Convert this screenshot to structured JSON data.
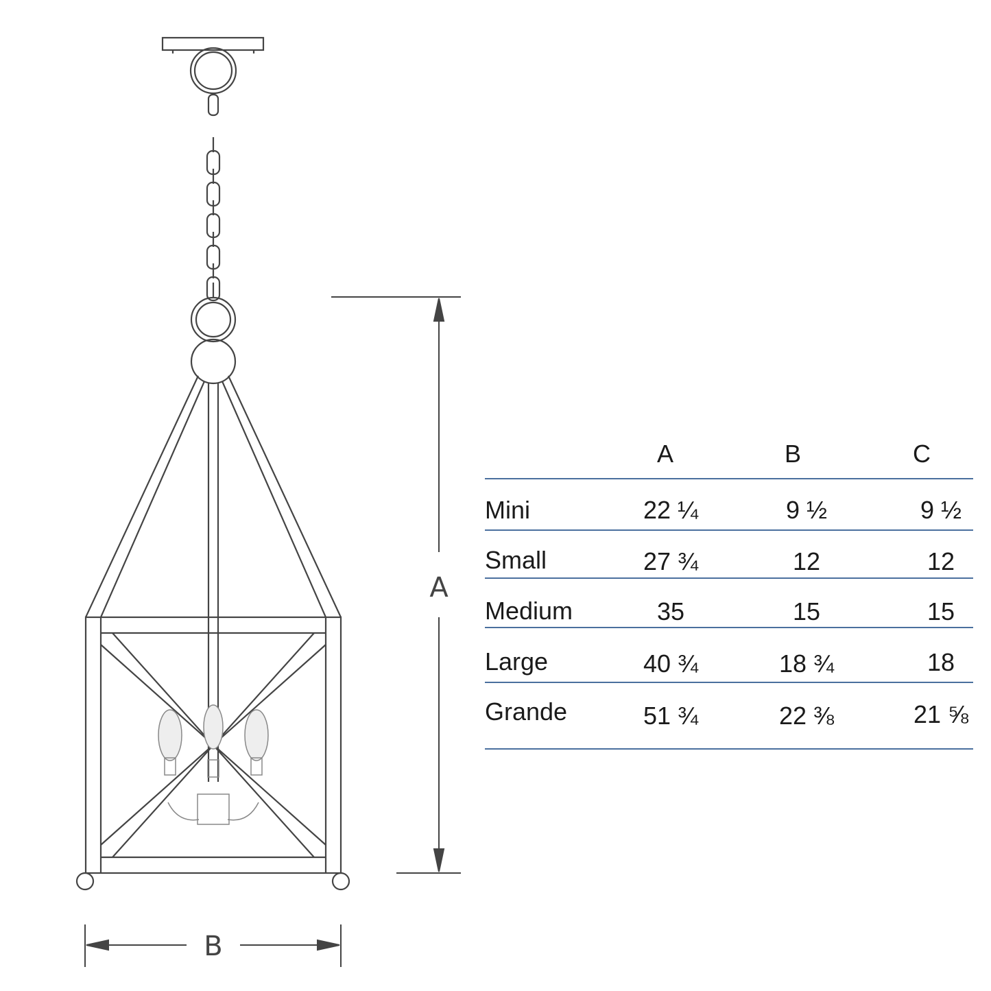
{
  "dimension_labels": {
    "height": "A",
    "width": "B"
  },
  "table": {
    "columns": [
      "A",
      "B",
      "C"
    ],
    "rows": [
      {
        "size": "Mini",
        "A": "22 ¼",
        "B": "9 ½",
        "C": "9 ½"
      },
      {
        "size": "Small",
        "A": "27 ¾",
        "B": "12",
        "C": "12"
      },
      {
        "size": "Medium",
        "A": "35",
        "B": "15",
        "C": "15"
      },
      {
        "size": "Large",
        "A": "40 ¾",
        "B": "18 ¾",
        "C": "18"
      },
      {
        "size": "Grande",
        "A": "51 ¾",
        "B": "22 ⅜",
        "C": "21 ⅝"
      }
    ]
  },
  "colors": {
    "rule": "#4a6f9e",
    "line_drawing": "#444444"
  }
}
